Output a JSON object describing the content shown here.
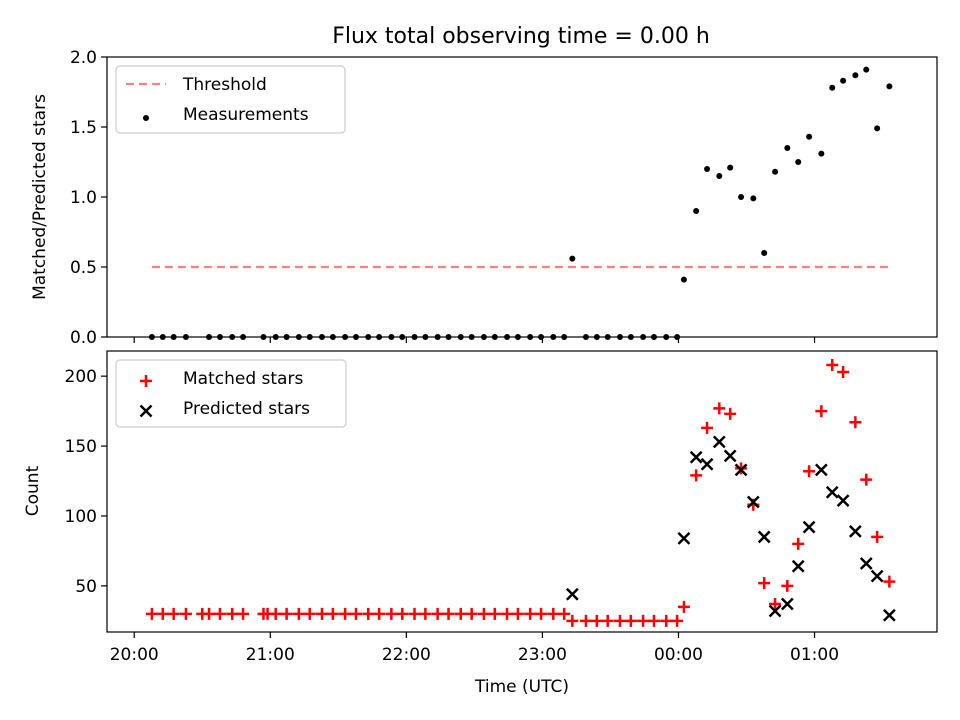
{
  "figure": {
    "title": "Flux total observing time = 0.00 h"
  },
  "chart_data": [
    {
      "type": "scatter",
      "title": "Flux total observing time = 0.00 h",
      "ylabel": "Matched/Predicted stars",
      "xlabel": "",
      "xlim": [
        -0.2,
        5.9
      ],
      "ylim": [
        0.0,
        2.0
      ],
      "y_ticks": [
        0.0,
        0.5,
        1.0,
        1.5,
        2.0
      ],
      "y_tick_labels": [
        "0.0",
        "0.5",
        "1.0",
        "1.5",
        "2.0"
      ],
      "x_ticks": [
        0,
        1,
        2,
        3,
        4,
        5
      ],
      "legend": {
        "placement": "top-left",
        "entries": [
          "Threshold",
          "Measurements"
        ]
      },
      "series": [
        {
          "name": "Threshold",
          "kind": "dashed-line",
          "color": "#ff7f7f",
          "x": [
            0.13,
            5.55
          ],
          "y": [
            0.5,
            0.5
          ]
        },
        {
          "name": "Measurements",
          "kind": "dot",
          "color": "#000000",
          "x": [
            0.13,
            0.21,
            0.29,
            0.38,
            0.55,
            0.63,
            0.72,
            0.8,
            0.95,
            1.04,
            1.12,
            1.21,
            1.29,
            1.38,
            1.46,
            1.55,
            1.63,
            1.72,
            1.8,
            1.89,
            1.97,
            2.06,
            2.14,
            2.23,
            2.31,
            2.4,
            2.48,
            2.57,
            2.65,
            2.74,
            2.82,
            2.91,
            2.99,
            3.08,
            3.16,
            3.22,
            3.32,
            3.4,
            3.48,
            3.57,
            3.65,
            3.74,
            3.82,
            3.91,
            3.99,
            4.04,
            4.13,
            4.21,
            4.3,
            4.38,
            4.46,
            4.55,
            4.63,
            4.71,
            4.8,
            4.88,
            4.96,
            5.05,
            5.13,
            5.21,
            5.3,
            5.38,
            5.46,
            5.55
          ],
          "y": [
            0,
            0,
            0,
            0,
            0,
            0,
            0,
            0,
            0,
            0,
            0,
            0,
            0,
            0,
            0,
            0,
            0,
            0,
            0,
            0,
            0,
            0,
            0,
            0,
            0,
            0,
            0,
            0,
            0,
            0,
            0,
            0,
            0,
            0,
            0,
            0.56,
            0,
            0,
            0,
            0,
            0,
            0,
            0,
            0,
            0,
            0.41,
            0.9,
            1.2,
            1.15,
            1.21,
            1.0,
            0.99,
            0.6,
            1.18,
            1.35,
            1.25,
            1.43,
            1.31,
            1.78,
            1.83,
            1.87,
            1.91,
            1.49,
            1.79
          ]
        }
      ]
    },
    {
      "type": "scatter",
      "title": "",
      "ylabel": "Count",
      "xlabel": "Time (UTC)",
      "xlim": [
        -0.2,
        5.9
      ],
      "ylim": [
        17,
        218
      ],
      "y_ticks": [
        50,
        100,
        150,
        200
      ],
      "y_tick_labels": [
        "50",
        "100",
        "150",
        "200"
      ],
      "x_ticks": [
        0,
        1,
        2,
        3,
        4,
        5
      ],
      "x_tick_labels": [
        "20:00",
        "21:00",
        "22:00",
        "23:00",
        "00:00",
        "01:00"
      ],
      "legend": {
        "placement": "top-left",
        "entries": [
          "Matched stars",
          "Predicted stars"
        ]
      },
      "series": [
        {
          "name": "Matched stars",
          "marker": "plus",
          "color": "#ff0000",
          "x": [
            0.13,
            0.21,
            0.29,
            0.38,
            0.5,
            0.55,
            0.63,
            0.72,
            0.8,
            0.95,
            0.98,
            1.04,
            1.12,
            1.21,
            1.29,
            1.38,
            1.46,
            1.55,
            1.63,
            1.72,
            1.8,
            1.89,
            1.97,
            2.06,
            2.14,
            2.23,
            2.31,
            2.4,
            2.48,
            2.57,
            2.65,
            2.74,
            2.82,
            2.91,
            2.99,
            3.08,
            3.16,
            3.22,
            3.32,
            3.4,
            3.48,
            3.57,
            3.65,
            3.74,
            3.82,
            3.91,
            3.99,
            4.04,
            4.13,
            4.21,
            4.3,
            4.38,
            4.46,
            4.55,
            4.63,
            4.71,
            4.8,
            4.88,
            4.96,
            5.05,
            5.13,
            5.21,
            5.3,
            5.38,
            5.46,
            5.55
          ],
          "y": [
            30,
            30,
            30,
            30,
            30,
            30,
            30,
            30,
            30,
            30,
            30,
            30,
            30,
            30,
            30,
            30,
            30,
            30,
            30,
            30,
            30,
            30,
            30,
            30,
            30,
            30,
            30,
            30,
            30,
            30,
            30,
            30,
            30,
            30,
            30,
            30,
            30,
            25,
            25,
            25,
            25,
            25,
            25,
            25,
            25,
            25,
            25,
            35,
            129,
            163,
            177,
            173,
            134,
            108,
            52,
            37,
            50,
            80,
            132,
            175,
            208,
            203,
            167,
            126,
            85,
            53
          ]
        },
        {
          "name": "Predicted stars",
          "marker": "x",
          "color": "#000000",
          "x": [
            3.22,
            4.04,
            4.13,
            4.21,
            4.3,
            4.38,
            4.46,
            4.55,
            4.63,
            4.71,
            4.8,
            4.88,
            4.96,
            5.05,
            5.13,
            5.21,
            5.3,
            5.38,
            5.46,
            5.55
          ],
          "y": [
            44,
            84,
            142,
            137,
            153,
            143,
            133,
            110,
            85,
            32,
            37,
            64,
            92,
            133,
            117,
            111,
            89,
            66,
            57,
            29
          ]
        }
      ]
    }
  ]
}
